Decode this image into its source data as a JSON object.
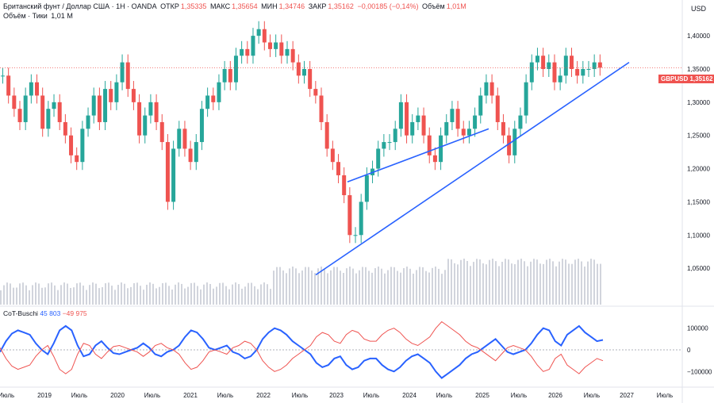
{
  "header": {
    "title": "Британский фунт / Доллар США · 1Н · OANDA",
    "open_label": "ОТКР",
    "open": "1,35335",
    "high_label": "МАКС",
    "high": "1,35654",
    "low_label": "МИН",
    "low": "1,34746",
    "close_label": "ЗАКР",
    "close": "1,35162",
    "change": "−0,00185 (−0,14%)",
    "vol_label": "Объём",
    "vol": "1,01М"
  },
  "volume_label": "Объём · Тики",
  "volume_value": "1,01 M",
  "currency": "USD",
  "symbol_tag": "GBPUSD",
  "last_price": "1,35162",
  "indicator": {
    "name": "CoT-Buschi",
    "blue_value": "45 803",
    "red_value": "−49 975"
  },
  "colors": {
    "up": "#26a69a",
    "down": "#ef5350",
    "blue": "#2962ff",
    "red": "#ef5350",
    "volume": "#d1d4dc"
  },
  "chart_data": [
    {
      "type": "candlestick",
      "y_ticks": [
        "1,40000",
        "1,35000",
        "1,30000",
        "1,25000",
        "1,20000",
        "1,15000",
        "1,10000",
        "1,05000"
      ],
      "ylim": [
        1.0,
        1.43
      ],
      "x_ticks": [
        "Июль",
        "2019",
        "Июль",
        "2020",
        "Июль",
        "2021",
        "Июль",
        "2022",
        "Июль",
        "2023",
        "Июль",
        "2024",
        "Июль",
        "2025",
        "Июль",
        "2026",
        "Июль",
        "2027",
        "Июль"
      ],
      "close_series": [
        1.34,
        1.31,
        1.29,
        1.27,
        1.31,
        1.33,
        1.31,
        1.26,
        1.29,
        1.3,
        1.27,
        1.25,
        1.22,
        1.21,
        1.26,
        1.28,
        1.31,
        1.27,
        1.32,
        1.3,
        1.33,
        1.36,
        1.32,
        1.3,
        1.25,
        1.28,
        1.3,
        1.27,
        1.24,
        1.15,
        1.23,
        1.26,
        1.23,
        1.21,
        1.24,
        1.29,
        1.31,
        1.3,
        1.33,
        1.35,
        1.33,
        1.37,
        1.38,
        1.37,
        1.4,
        1.41,
        1.39,
        1.38,
        1.39,
        1.37,
        1.38,
        1.36,
        1.34,
        1.35,
        1.32,
        1.31,
        1.27,
        1.23,
        1.21,
        1.19,
        1.16,
        1.1,
        1.1,
        1.15,
        1.19,
        1.2,
        1.23,
        1.24,
        1.24,
        1.26,
        1.3,
        1.25,
        1.27,
        1.28,
        1.25,
        1.22,
        1.21,
        1.25,
        1.27,
        1.29,
        1.26,
        1.25,
        1.26,
        1.28,
        1.31,
        1.33,
        1.31,
        1.27,
        1.25,
        1.22,
        1.26,
        1.28,
        1.33,
        1.36,
        1.37,
        1.35,
        1.36,
        1.33,
        1.34,
        1.37,
        1.35,
        1.34,
        1.35,
        1.35,
        1.36,
        1.352
      ],
      "trendlines": [
        {
          "from": [
            "2022-10",
            1.04
          ],
          "to": [
            "2027-04",
            1.355
          ]
        },
        {
          "from": [
            "2023-03",
            1.18
          ],
          "to": [
            "2025-01",
            1.26
          ]
        }
      ],
      "last_price": 1.35162
    },
    {
      "type": "line",
      "name": "CoT-Buschi",
      "y_ticks": [
        "100000",
        "0",
        "−100000"
      ],
      "ylim": [
        -150000,
        150000
      ],
      "series": [
        {
          "name": "blue",
          "values": [
            -10000,
            40000,
            75000,
            90000,
            80000,
            70000,
            30000,
            0,
            -20000,
            30000,
            90000,
            110000,
            90000,
            20000,
            -30000,
            -20000,
            20000,
            40000,
            10000,
            -15000,
            -20000,
            -10000,
            0,
            10000,
            30000,
            10000,
            -20000,
            -30000,
            -10000,
            0,
            20000,
            60000,
            90000,
            80000,
            50000,
            10000,
            0,
            10000,
            20000,
            -10000,
            -20000,
            -40000,
            -30000,
            0,
            50000,
            80000,
            100000,
            90000,
            70000,
            40000,
            20000,
            0,
            -20000,
            -60000,
            -80000,
            -70000,
            -40000,
            -30000,
            -70000,
            -90000,
            -80000,
            -50000,
            -40000,
            -40000,
            -70000,
            -90000,
            -100000,
            -80000,
            -50000,
            -30000,
            -20000,
            -40000,
            -60000,
            -100000,
            -130000,
            -110000,
            -90000,
            -70000,
            -40000,
            -20000,
            -10000,
            10000,
            30000,
            50000,
            20000,
            -10000,
            -20000,
            -10000,
            0,
            30000,
            70000,
            100000,
            90000,
            40000,
            20000,
            70000,
            90000,
            110000,
            80000,
            60000,
            40000,
            45803
          ]
        },
        {
          "name": "red",
          "values": [
            10000,
            -40000,
            -75000,
            -90000,
            -80000,
            -70000,
            -30000,
            0,
            20000,
            -30000,
            -90000,
            -110000,
            -90000,
            -20000,
            30000,
            20000,
            -20000,
            -40000,
            -10000,
            15000,
            20000,
            10000,
            0,
            -10000,
            -30000,
            -10000,
            20000,
            30000,
            10000,
            0,
            -20000,
            -60000,
            -90000,
            -80000,
            -50000,
            -10000,
            0,
            -10000,
            -20000,
            10000,
            20000,
            40000,
            30000,
            0,
            -50000,
            -80000,
            -100000,
            -90000,
            -70000,
            -40000,
            -20000,
            0,
            20000,
            60000,
            80000,
            70000,
            40000,
            30000,
            70000,
            90000,
            80000,
            50000,
            40000,
            40000,
            70000,
            90000,
            100000,
            80000,
            50000,
            30000,
            20000,
            40000,
            60000,
            100000,
            130000,
            110000,
            90000,
            70000,
            40000,
            20000,
            10000,
            -10000,
            -30000,
            -50000,
            -20000,
            10000,
            20000,
            10000,
            0,
            -30000,
            -70000,
            -100000,
            -90000,
            -40000,
            -20000,
            -70000,
            -90000,
            -110000,
            -80000,
            -60000,
            -40000,
            -49975
          ]
        }
      ]
    }
  ]
}
